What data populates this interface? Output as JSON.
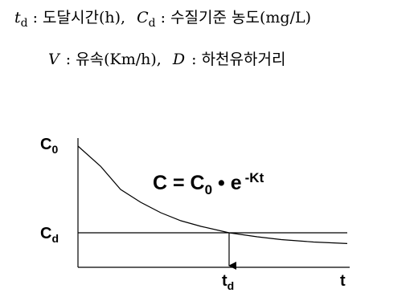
{
  "legend": {
    "line1": [
      {
        "symbol": "t",
        "subscript": "d",
        "text": ": 도달시간(h),"
      },
      {
        "symbol": "C",
        "subscript": "d",
        "text": ": 수질기준 농도(mg/L)"
      }
    ],
    "line2": [
      {
        "symbol": "V",
        "text": ": 유속(Km/h),"
      },
      {
        "symbol": "D",
        "text": ": 하천유하거리"
      }
    ]
  },
  "diagram": {
    "c0_label": {
      "main": "C",
      "sub": "0"
    },
    "cd_label": {
      "main": "C",
      "sub": "d"
    },
    "td_label": {
      "main": "t",
      "sub": "d"
    },
    "t_label": "t",
    "formula": {
      "lhs": "C = C",
      "sub": "0",
      "mid": " • e",
      "sup": "-Kt"
    }
  }
}
